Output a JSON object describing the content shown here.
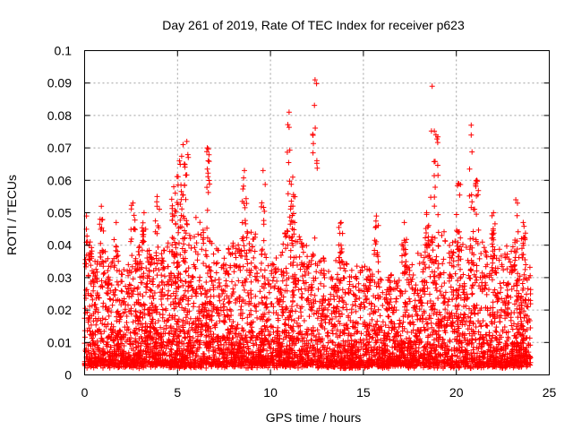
{
  "chart_data": {
    "type": "scatter",
    "title": "Day 261 of 2019, Rate Of TEC Index for receiver p623",
    "xlabel": "GPS time / hours",
    "ylabel": "ROTI / TECUs",
    "xlim": [
      0,
      25
    ],
    "ylim": [
      0,
      0.1
    ],
    "x_ticks": [
      0,
      5,
      10,
      15,
      20,
      25
    ],
    "x_tick_labels": [
      "0",
      "5",
      "10",
      "15",
      "20",
      "25"
    ],
    "y_ticks": [
      0,
      0.01,
      0.02,
      0.03,
      0.04,
      0.05,
      0.06,
      0.07,
      0.08,
      0.09,
      0.1
    ],
    "y_tick_labels": [
      "0",
      "0.01",
      "0.02",
      "0.03",
      "0.04",
      "0.05",
      "0.06",
      "0.07",
      "0.08",
      "0.09",
      "0.1"
    ],
    "grid": true,
    "marker": "+",
    "series_color": "#ff0000",
    "peaks": [
      {
        "x": 0.1,
        "y": 0.049
      },
      {
        "x": 0.3,
        "y": 0.041
      },
      {
        "x": 0.9,
        "y": 0.052
      },
      {
        "x": 1.7,
        "y": 0.047
      },
      {
        "x": 2.6,
        "y": 0.053
      },
      {
        "x": 3.2,
        "y": 0.05
      },
      {
        "x": 3.9,
        "y": 0.055
      },
      {
        "x": 4.8,
        "y": 0.058
      },
      {
        "x": 5.1,
        "y": 0.066
      },
      {
        "x": 5.3,
        "y": 0.071
      },
      {
        "x": 5.5,
        "y": 0.072
      },
      {
        "x": 6.6,
        "y": 0.07
      },
      {
        "x": 8.6,
        "y": 0.063
      },
      {
        "x": 9.6,
        "y": 0.063
      },
      {
        "x": 11.0,
        "y": 0.081
      },
      {
        "x": 11.2,
        "y": 0.061
      },
      {
        "x": 12.4,
        "y": 0.091
      },
      {
        "x": 13.8,
        "y": 0.047
      },
      {
        "x": 15.7,
        "y": 0.049
      },
      {
        "x": 17.2,
        "y": 0.047
      },
      {
        "x": 18.4,
        "y": 0.05
      },
      {
        "x": 18.7,
        "y": 0.089
      },
      {
        "x": 18.9,
        "y": 0.074
      },
      {
        "x": 20.1,
        "y": 0.059
      },
      {
        "x": 20.8,
        "y": 0.077
      },
      {
        "x": 21.1,
        "y": 0.06
      },
      {
        "x": 22.0,
        "y": 0.05
      },
      {
        "x": 23.2,
        "y": 0.054
      },
      {
        "x": 23.6,
        "y": 0.047
      }
    ],
    "envelope": {
      "x": [
        0,
        1,
        2,
        3,
        4,
        5,
        6,
        7,
        8,
        9,
        10,
        11,
        12,
        13,
        14,
        15,
        16,
        17,
        18,
        19,
        20,
        21,
        22,
        23,
        24
      ],
      "typical_max": [
        0.035,
        0.038,
        0.033,
        0.04,
        0.037,
        0.045,
        0.048,
        0.04,
        0.042,
        0.045,
        0.035,
        0.047,
        0.04,
        0.036,
        0.035,
        0.035,
        0.03,
        0.032,
        0.038,
        0.045,
        0.04,
        0.043,
        0.038,
        0.04,
        0.033
      ]
    },
    "x_range_data": [
      0,
      24
    ],
    "baseline_y": 0.003
  }
}
